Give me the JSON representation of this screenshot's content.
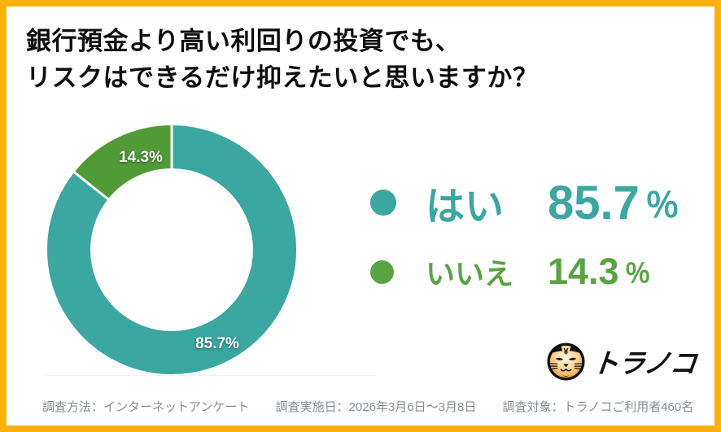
{
  "frame": {
    "border_color": "#FBB10C",
    "background": "#FFFFFF"
  },
  "title": {
    "line1": "銀行預金より高い利回りの投資でも、",
    "line2": "リスクはできるだけ抑えたいと思いますか？"
  },
  "chart_data": {
    "type": "pie",
    "subtype": "donut",
    "title": "銀行預金より高い利回りの投資でも、リスクはできるだけ抑えたいと思いますか？",
    "categories": [
      "はい",
      "いいえ"
    ],
    "values": [
      85.7,
      14.3
    ],
    "unit": "%",
    "colors": [
      "#3AA7A0",
      "#509B36"
    ],
    "slice_labels": [
      "85.7%",
      "14.3%"
    ],
    "start_angle_deg": 0,
    "direction": "clockwise",
    "donut_hole_ratio": 0.66,
    "legend_position": "right",
    "slice_label_color": "#FFFFFF"
  },
  "legend": {
    "items": [
      {
        "label": "はい",
        "value": "85.7",
        "percent_sign": "％",
        "color": "#3AA7A0"
      },
      {
        "label": "いいえ",
        "value": "14.3",
        "percent_sign": "％",
        "color": "#58A443"
      }
    ]
  },
  "footer": {
    "method": "調査方法：インターネットアンケート",
    "period": "調査実施日：2026年3月6日～3月8日",
    "subjects": "調査対象：トラノコご利用者460名"
  },
  "logo": {
    "wordmark": "トラノコ",
    "icon": "tiger-face-icon",
    "forehead_symbol": "¥"
  }
}
